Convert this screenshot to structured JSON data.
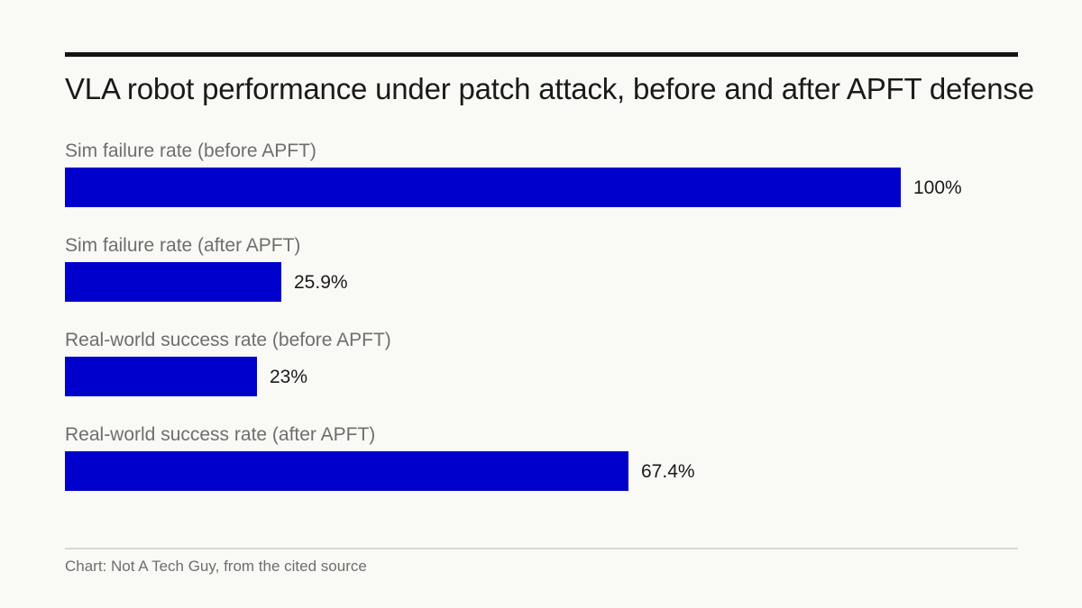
{
  "chart_data": {
    "type": "bar",
    "orientation": "horizontal",
    "title": "VLA robot performance under patch attack, before and after APFT defense",
    "categories": [
      "Sim failure rate (before APFT)",
      "Sim failure rate (after APFT)",
      "Real-world success rate (before APFT)",
      "Real-world success rate (after APFT)"
    ],
    "values": [
      100,
      25.9,
      23,
      67.4
    ],
    "value_labels": [
      "100%",
      "25.9%",
      "23%",
      "67.4%"
    ],
    "unit": "%",
    "xlim": [
      0,
      100
    ],
    "grid": false,
    "legend": "none",
    "bar_color": "#0000cc",
    "source": "Chart: Not A Tech Guy, from the cited source"
  }
}
